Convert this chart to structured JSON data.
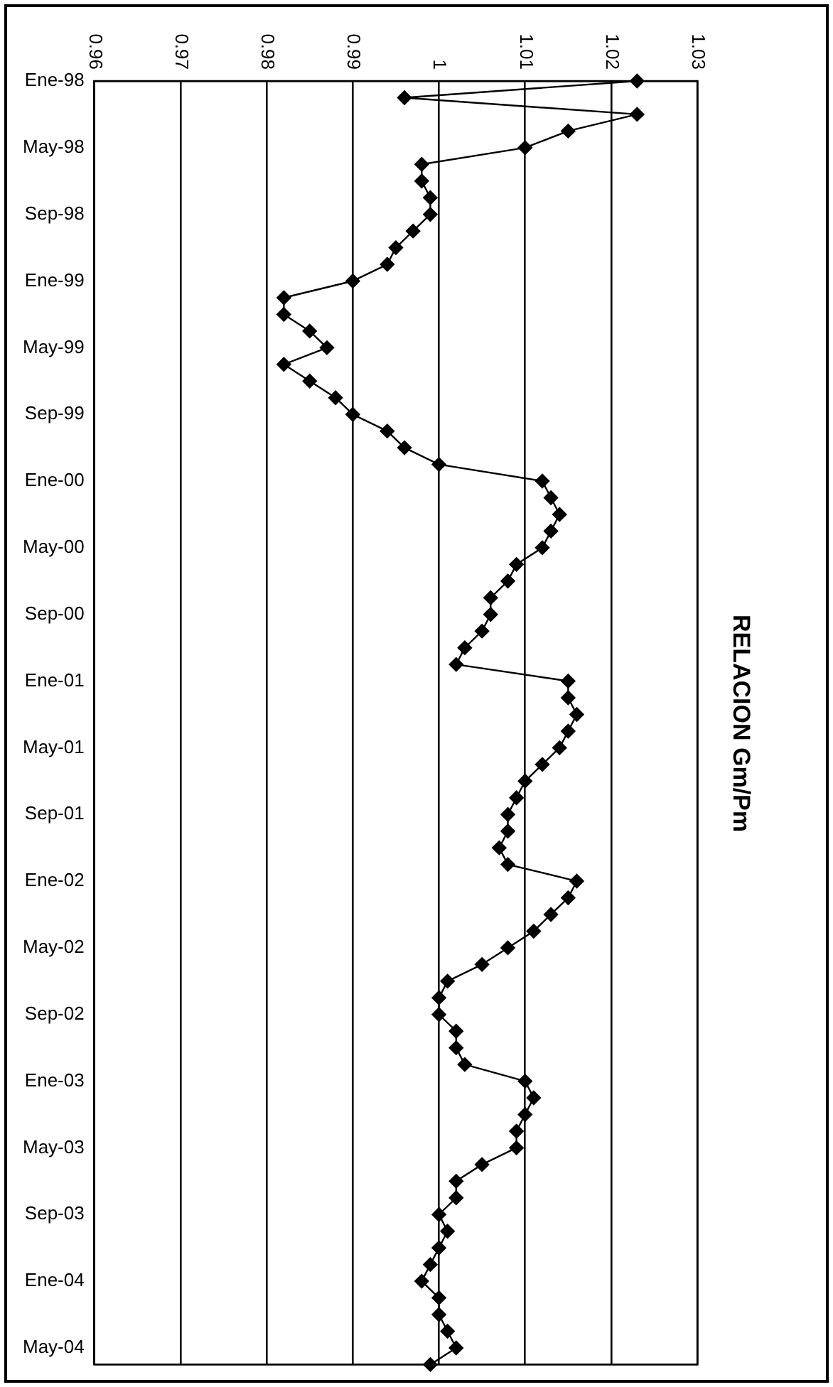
{
  "chart_data": {
    "type": "line",
    "orientation": "horizontal",
    "title": "RELACION Gm/Pm",
    "categories": [
      "Ene-98",
      null,
      null,
      null,
      "May-98",
      null,
      null,
      null,
      "Sep-98",
      null,
      null,
      null,
      "Ene-99",
      null,
      null,
      null,
      "May-99",
      null,
      null,
      null,
      "Sep-99",
      null,
      null,
      null,
      "Ene-00",
      null,
      null,
      null,
      "May-00",
      null,
      null,
      null,
      "Sep-00",
      null,
      null,
      null,
      "Ene-01",
      null,
      null,
      null,
      "May-01",
      null,
      null,
      null,
      "Sep-01",
      null,
      null,
      null,
      "Ene-02",
      null,
      null,
      null,
      "May-02",
      null,
      null,
      null,
      "Sep-02",
      null,
      null,
      null,
      "Ene-03",
      null,
      null,
      null,
      "May-03",
      null,
      null,
      null,
      "Sep-03",
      null,
      null,
      null,
      "Ene-04",
      null,
      null,
      null,
      "May-04",
      null
    ],
    "series": [
      {
        "color": "#000000",
        "values": [
          1.023,
          0.996,
          1.023,
          1.015,
          1.01,
          0.998,
          0.998,
          0.999,
          0.999,
          0.997,
          0.995,
          0.994,
          0.99,
          0.982,
          0.982,
          0.985,
          0.987,
          0.982,
          0.985,
          0.988,
          0.99,
          0.994,
          0.996,
          1.0,
          1.012,
          1.013,
          1.014,
          1.013,
          1.012,
          1.009,
          1.008,
          1.006,
          1.006,
          1.005,
          1.003,
          1.002,
          1.015,
          1.015,
          1.016,
          1.015,
          1.014,
          1.012,
          1.01,
          1.009,
          1.008,
          1.008,
          1.007,
          1.008,
          1.016,
          1.015,
          1.013,
          1.011,
          1.008,
          1.005,
          1.001,
          1.0,
          1.0,
          1.002,
          1.002,
          1.003,
          1.01,
          1.011,
          1.01,
          1.009,
          1.009,
          1.005,
          1.002,
          1.002,
          1.0,
          1.001,
          1.0,
          0.999,
          0.998,
          1.0,
          1.0,
          1.001,
          1.002,
          0.999
        ]
      }
    ],
    "xlim": [
      0.96,
      1.03
    ],
    "xticks": [
      0.96,
      0.97,
      0.98,
      0.99,
      1,
      1.01,
      1.02,
      1.03
    ],
    "grid": "x",
    "marker": "diamond",
    "line_style": "solid",
    "legend": false
  }
}
